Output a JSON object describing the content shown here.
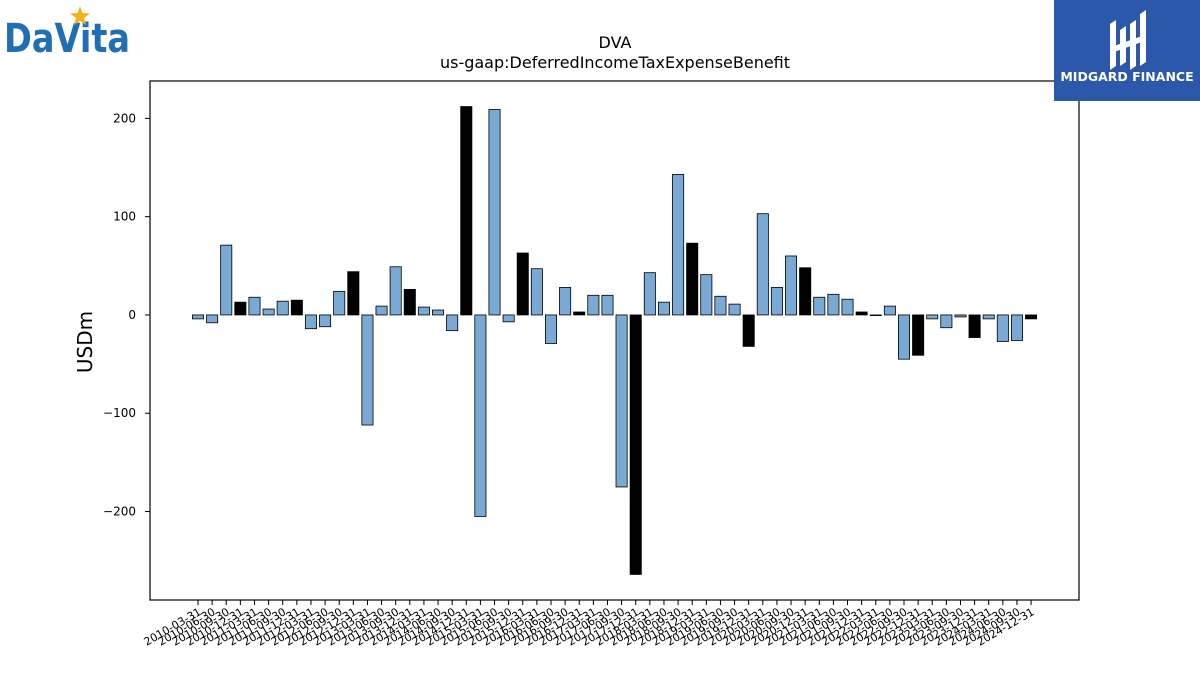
{
  "logos": {
    "left_text": "DaVita",
    "left_color": "#1f6fb2",
    "left_star_color": "#f3b31c",
    "right_text": "MIDGARD FINANCE",
    "right_bg": "#2b58a8"
  },
  "chart_data": {
    "type": "bar",
    "title": "DVA",
    "subtitle": "us-gaap:DeferredIncomeTaxExpenseBenefit",
    "ylabel": "USDm",
    "xlabel": "",
    "ylim": [
      -290,
      238
    ],
    "yticks": [
      -200,
      -100,
      0,
      100,
      200
    ],
    "ytick_labels": [
      "−200",
      "−100",
      "0",
      "100",
      "200"
    ],
    "grid": false,
    "colors": {
      "quarter": "#7aaad4",
      "year_end": "#000000",
      "edge": "#000000"
    },
    "categories": [
      "2010-03-31",
      "2010-06-30",
      "2010-09-30",
      "2010-12-31",
      "2011-03-31",
      "2011-06-30",
      "2011-09-30",
      "2011-12-31",
      "2012-03-31",
      "2012-06-30",
      "2012-09-30",
      "2012-12-31",
      "2013-03-31",
      "2013-06-30",
      "2013-09-30",
      "2013-12-31",
      "2014-03-31",
      "2014-06-30",
      "2014-09-30",
      "2014-12-31",
      "2015-03-31",
      "2015-06-30",
      "2015-09-30",
      "2015-12-31",
      "2016-03-31",
      "2016-06-30",
      "2016-09-30",
      "2016-12-31",
      "2017-03-31",
      "2017-06-30",
      "2017-09-30",
      "2017-12-31",
      "2018-03-31",
      "2018-06-30",
      "2018-09-30",
      "2018-12-31",
      "2019-03-31",
      "2019-06-30",
      "2019-09-30",
      "2019-12-31",
      "2020-03-31",
      "2020-06-30",
      "2020-09-30",
      "2020-12-31",
      "2021-03-31",
      "2021-06-30",
      "2021-09-30",
      "2021-12-31",
      "2022-03-31",
      "2022-06-30",
      "2022-09-30",
      "2022-12-31",
      "2023-03-31",
      "2023-06-30",
      "2023-09-30",
      "2023-12-31",
      "2024-03-31",
      "2024-06-30",
      "2024-09-30",
      "2024-12-31"
    ],
    "tick_labels": [
      "2010-03-31",
      "2010-06-30",
      "2010-09-30",
      "2010-12-31",
      "2011-03-31",
      "2011-06-30",
      "2011-09-30",
      "2011-12-31",
      "2012-03-31",
      "2012-06-30",
      "2012-09-30",
      "2012-12-31",
      "2013-03-31",
      "2013-06-30",
      "2013-09-30",
      "2013-12-31",
      "2014-03-31",
      "2014-06-30",
      "2014-09-30",
      "2014-12-31",
      "2015-03-31",
      "2015-06-30",
      "2015-09-30",
      "2015-12-31",
      "2016-03-31",
      "2016-06-30",
      "2016-09-30",
      "2016-12-31",
      "2017-03-31",
      "2017-06-30",
      "2017-09-30",
      "2017-12-31",
      "2018-03-31",
      "2018-06-30",
      "2018-09-30",
      "2018-12-31",
      "2019-03-31",
      "2019-06-30",
      "2019-09-30",
      "2019-12-31",
      "2020-03-31",
      "2020-06-30",
      "2020-09-30",
      "2020-12-31",
      "2021-03-31",
      "2021-06-30",
      "2021-09-30",
      "2021-12-31",
      "2022-03-31",
      "2022-06-30",
      "2022-09-30",
      "2022-12-31",
      "2023-03-31",
      "2023-06-30",
      "2023-09-30",
      "2023-12-31",
      "2024-03-31",
      "2024-06-30",
      "2024-09-30",
      "2024-12-31"
    ],
    "values": [
      -4,
      -8,
      71,
      13,
      18,
      6,
      14,
      15,
      -14,
      -12,
      24,
      44,
      -112,
      9,
      49,
      26,
      8,
      5,
      -16,
      212,
      -205,
      209,
      -7,
      63,
      47,
      -29,
      28,
      3,
      20,
      20,
      -175,
      -264,
      43,
      13,
      143,
      73,
      41,
      19,
      11,
      -32,
      103,
      28,
      60,
      48,
      18,
      21,
      16,
      3,
      0,
      9,
      -45,
      -41,
      -4,
      -13,
      -2,
      -23,
      -4,
      -27,
      -26,
      -4
    ],
    "year_end": [
      false,
      false,
      false,
      true,
      false,
      false,
      false,
      true,
      false,
      false,
      false,
      true,
      false,
      false,
      false,
      true,
      false,
      false,
      false,
      true,
      false,
      false,
      false,
      true,
      false,
      false,
      false,
      true,
      false,
      false,
      false,
      true,
      false,
      false,
      false,
      true,
      false,
      false,
      false,
      true,
      false,
      false,
      false,
      true,
      false,
      false,
      false,
      true,
      false,
      false,
      false,
      true,
      false,
      false,
      false,
      true,
      false,
      false,
      false,
      true
    ]
  }
}
